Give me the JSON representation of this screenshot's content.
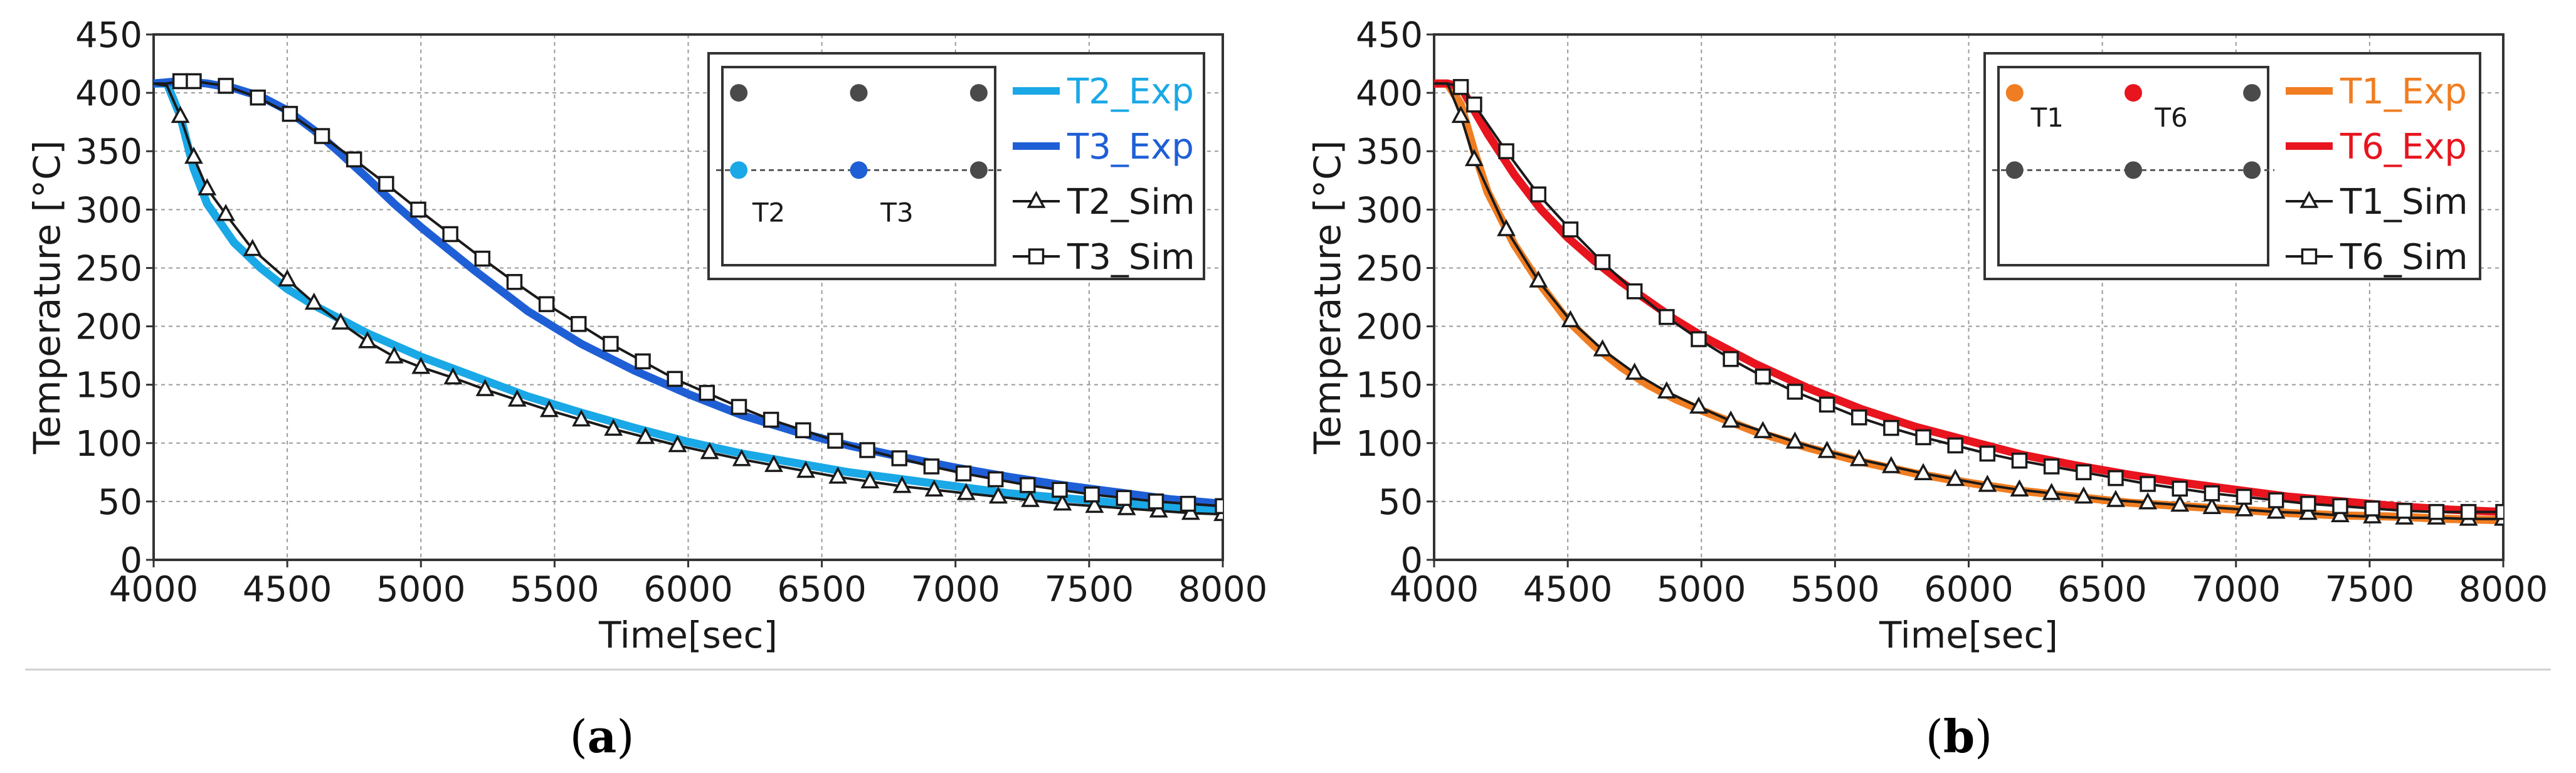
{
  "chart_data": [
    {
      "panel": "(a)",
      "panel_letter": "a",
      "type": "line",
      "xlabel": "Time[sec]",
      "ylabel": "Temperature [°C]",
      "xlim": [
        4000,
        8000
      ],
      "ylim": [
        0,
        450
      ],
      "xticks": [
        4000,
        4500,
        5000,
        5500,
        6000,
        6500,
        7000,
        7500,
        8000
      ],
      "yticks": [
        0,
        50,
        100,
        150,
        200,
        250,
        300,
        350,
        400,
        450
      ],
      "grid": true,
      "legend": "top-right",
      "inset_labels": [
        "T2",
        "T3"
      ],
      "series": [
        {
          "name": "T2_Exp",
          "style": "line",
          "color": "#1aa8e6",
          "x": [
            4000,
            4050,
            4100,
            4150,
            4200,
            4300,
            4400,
            4500,
            4600,
            4700,
            4800,
            4900,
            5000,
            5200,
            5400,
            5600,
            5800,
            6000,
            6200,
            6400,
            6600,
            6800,
            7000,
            7200,
            7400,
            7600,
            7800,
            8000
          ],
          "y": [
            408,
            408,
            380,
            335,
            305,
            272,
            250,
            232,
            218,
            206,
            194,
            184,
            174,
            157,
            140,
            126,
            113,
            101,
            91,
            83,
            75,
            69,
            63,
            57,
            53,
            49,
            45,
            42
          ]
        },
        {
          "name": "T3_Exp",
          "style": "line",
          "color": "#1f5fd6",
          "x": [
            4000,
            4100,
            4200,
            4300,
            4400,
            4500,
            4600,
            4700,
            4800,
            4900,
            5000,
            5200,
            5400,
            5600,
            5800,
            6000,
            6200,
            6400,
            6600,
            6800,
            7000,
            7200,
            7400,
            7600,
            7800,
            8000
          ],
          "y": [
            408,
            410,
            408,
            404,
            397,
            385,
            368,
            348,
            327,
            305,
            285,
            248,
            213,
            185,
            162,
            142,
            124,
            110,
            98,
            88,
            79,
            71,
            64,
            58,
            52,
            48
          ]
        },
        {
          "name": "T2_Sim",
          "style": "triangle",
          "color": "#1a1a1a",
          "x": [
            4000,
            4050,
            4100,
            4150,
            4200,
            4270,
            4370,
            4500,
            4600,
            4700,
            4800,
            4900,
            5000,
            5120,
            5240,
            5360,
            5480,
            5600,
            5720,
            5840,
            5960,
            6080,
            6200,
            6320,
            6440,
            6560,
            6680,
            6800,
            6920,
            7040,
            7160,
            7280,
            7400,
            7520,
            7640,
            7760,
            7880,
            8000
          ],
          "y": [
            408,
            406,
            380,
            345,
            318,
            296,
            266,
            240,
            220,
            203,
            187,
            174,
            165,
            156,
            146,
            137,
            128,
            120,
            112,
            105,
            98,
            92,
            86,
            81,
            76,
            71,
            67,
            63,
            60,
            57,
            54,
            51,
            48,
            46,
            44,
            42,
            40,
            39
          ]
        },
        {
          "name": "T3_Sim",
          "style": "square",
          "color": "#1a1a1a",
          "x": [
            4000,
            4050,
            4100,
            4150,
            4270,
            4390,
            4510,
            4630,
            4750,
            4870,
            4990,
            5110,
            5230,
            5350,
            5470,
            5590,
            5710,
            5830,
            5950,
            6070,
            6190,
            6310,
            6430,
            6550,
            6670,
            6790,
            6910,
            7030,
            7150,
            7270,
            7390,
            7510,
            7630,
            7750,
            7870,
            8000
          ],
          "y": [
            408,
            408,
            410,
            410,
            406,
            396,
            382,
            363,
            343,
            322,
            300,
            279,
            258,
            238,
            219,
            202,
            185,
            170,
            155,
            143,
            131,
            120,
            111,
            102,
            94,
            87,
            80,
            74,
            69,
            64,
            60,
            56,
            53,
            50,
            48,
            46
          ]
        }
      ]
    },
    {
      "panel": "(b)",
      "panel_letter": "b",
      "type": "line",
      "xlabel": "Time[sec]",
      "ylabel": "Temperature [°C]",
      "xlim": [
        4000,
        8000
      ],
      "ylim": [
        0,
        450
      ],
      "xticks": [
        4000,
        4500,
        5000,
        5500,
        6000,
        6500,
        7000,
        7500,
        8000
      ],
      "yticks": [
        0,
        50,
        100,
        150,
        200,
        250,
        300,
        350,
        400,
        450
      ],
      "grid": true,
      "legend": "top-right",
      "inset_labels": [
        "T1",
        "T6"
      ],
      "series": [
        {
          "name": "T1_Exp",
          "style": "line",
          "color": "#f07d21",
          "x": [
            4000,
            4050,
            4100,
            4150,
            4200,
            4300,
            4400,
            4500,
            4600,
            4700,
            4800,
            4900,
            5000,
            5200,
            5400,
            5600,
            5800,
            6000,
            6200,
            6400,
            6600,
            6800,
            7000,
            7200,
            7400,
            7600,
            7800,
            8000
          ],
          "y": [
            408,
            408,
            390,
            350,
            315,
            270,
            235,
            205,
            183,
            165,
            150,
            138,
            128,
            110,
            96,
            84,
            74,
            66,
            59,
            54,
            49,
            46,
            43,
            40,
            38,
            37,
            35,
            34
          ]
        },
        {
          "name": "T6_Exp",
          "style": "line",
          "color": "#e8141e",
          "x": [
            4000,
            4050,
            4100,
            4150,
            4200,
            4300,
            4400,
            4500,
            4600,
            4700,
            4800,
            4900,
            5000,
            5200,
            5400,
            5600,
            5800,
            6000,
            6200,
            6400,
            6600,
            6800,
            7000,
            7200,
            7400,
            7600,
            7800,
            8000
          ],
          "y": [
            408,
            408,
            405,
            385,
            365,
            330,
            300,
            276,
            256,
            238,
            222,
            206,
            192,
            168,
            147,
            129,
            114,
            102,
            90,
            81,
            73,
            66,
            60,
            54,
            50,
            46,
            43,
            41
          ]
        },
        {
          "name": "T1_Sim",
          "style": "triangle",
          "color": "#1a1a1a",
          "x": [
            4000,
            4050,
            4100,
            4150,
            4270,
            4390,
            4510,
            4630,
            4750,
            4870,
            4990,
            5110,
            5230,
            5350,
            5470,
            5590,
            5710,
            5830,
            5950,
            6070,
            6190,
            6310,
            6430,
            6550,
            6670,
            6790,
            6910,
            7030,
            7150,
            7270,
            7390,
            7510,
            7630,
            7750,
            7870,
            8000
          ],
          "y": [
            408,
            408,
            380,
            343,
            283,
            239,
            205,
            180,
            160,
            144,
            131,
            119,
            110,
            101,
            93,
            86,
            80,
            74,
            69,
            64,
            60,
            57,
            54,
            51,
            49,
            47,
            45,
            43,
            41,
            40,
            38,
            37,
            36,
            36,
            35,
            35
          ]
        },
        {
          "name": "T6_Sim",
          "style": "square",
          "color": "#1a1a1a",
          "x": [
            4000,
            4050,
            4100,
            4150,
            4270,
            4390,
            4510,
            4630,
            4750,
            4870,
            4990,
            5110,
            5230,
            5350,
            5470,
            5590,
            5710,
            5830,
            5950,
            6070,
            6190,
            6310,
            6430,
            6550,
            6670,
            6790,
            6910,
            7030,
            7150,
            7270,
            7390,
            7510,
            7630,
            7750,
            7870,
            8000
          ],
          "y": [
            408,
            408,
            405,
            390,
            350,
            313,
            283,
            255,
            230,
            208,
            189,
            172,
            157,
            144,
            133,
            122,
            113,
            105,
            98,
            91,
            85,
            80,
            75,
            70,
            65,
            61,
            57,
            54,
            51,
            48,
            46,
            44,
            42,
            41,
            41,
            41
          ]
        }
      ]
    }
  ]
}
